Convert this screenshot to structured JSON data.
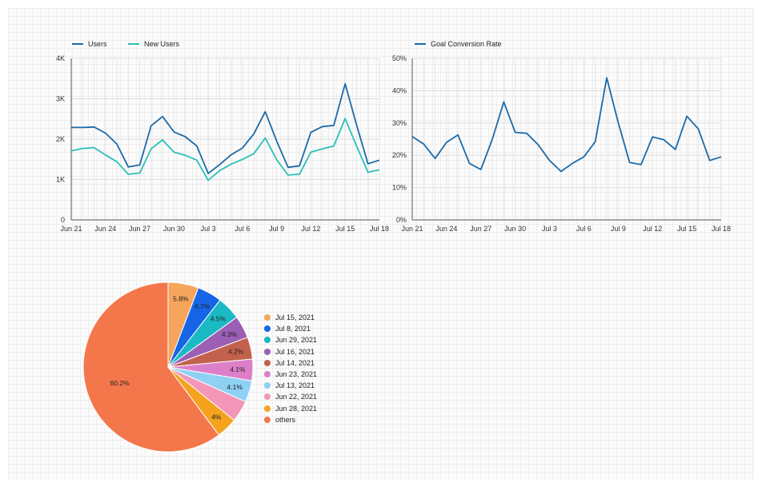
{
  "chart_data": [
    {
      "type": "line",
      "x": [
        "Jun 21",
        "Jun 22",
        "Jun 23",
        "Jun 24",
        "Jun 25",
        "Jun 26",
        "Jun 27",
        "Jun 28",
        "Jun 29",
        "Jun 30",
        "Jul 1",
        "Jul 2",
        "Jul 3",
        "Jul 4",
        "Jul 5",
        "Jul 6",
        "Jul 7",
        "Jul 8",
        "Jul 9",
        "Jul 10",
        "Jul 11",
        "Jul 12",
        "Jul 13",
        "Jul 14",
        "Jul 15",
        "Jul 16",
        "Jul 17",
        "Jul 18"
      ],
      "xticks": [
        "Jun 21",
        "Jun 24",
        "Jun 27",
        "Jun 30",
        "Jul 3",
        "Jul 6",
        "Jul 9",
        "Jul 12",
        "Jul 15",
        "Jul 18"
      ],
      "yticks": [
        "0",
        "1K",
        "2K",
        "3K",
        "4K"
      ],
      "ylim": [
        0,
        4000
      ],
      "series": [
        {
          "name": "Users",
          "color": "#1c6aa8",
          "values": [
            2290,
            2290,
            2300,
            2150,
            1880,
            1310,
            1360,
            2330,
            2560,
            2180,
            2060,
            1830,
            1150,
            1370,
            1610,
            1780,
            2130,
            2680,
            1950,
            1300,
            1340,
            2170,
            2310,
            2340,
            3370,
            2350,
            1390,
            1480
          ]
        },
        {
          "name": "New Users",
          "color": "#2dbfb7",
          "values": [
            1710,
            1770,
            1790,
            1610,
            1440,
            1130,
            1160,
            1760,
            1980,
            1680,
            1600,
            1480,
            980,
            1220,
            1380,
            1500,
            1640,
            2030,
            1490,
            1110,
            1130,
            1680,
            1760,
            1830,
            2510,
            1830,
            1180,
            1240
          ]
        }
      ],
      "grid": true,
      "legend": "top-left"
    },
    {
      "type": "line",
      "x": [
        "Jun 21",
        "Jun 22",
        "Jun 23",
        "Jun 24",
        "Jun 25",
        "Jun 26",
        "Jun 27",
        "Jun 28",
        "Jun 29",
        "Jun 30",
        "Jul 1",
        "Jul 2",
        "Jul 3",
        "Jul 4",
        "Jul 5",
        "Jul 6",
        "Jul 7",
        "Jul 8",
        "Jul 9",
        "Jul 10",
        "Jul 11",
        "Jul 12",
        "Jul 13",
        "Jul 14",
        "Jul 15",
        "Jul 16",
        "Jul 17",
        "Jul 18"
      ],
      "xticks": [
        "Jun 21",
        "Jun 24",
        "Jun 27",
        "Jun 30",
        "Jul 3",
        "Jul 6",
        "Jul 9",
        "Jul 12",
        "Jul 15",
        "Jul 18"
      ],
      "yticks": [
        "0%",
        "10%",
        "20%",
        "30%",
        "40%",
        "50%"
      ],
      "ylim": [
        0,
        50
      ],
      "series": [
        {
          "name": "Goal Conversion Rate",
          "color": "#1c6aa8",
          "values": [
            25.8,
            23.5,
            19.0,
            24.0,
            26.3,
            17.5,
            15.6,
            25.0,
            36.5,
            27.1,
            26.8,
            23.3,
            18.4,
            15.0,
            17.5,
            19.5,
            24.2,
            44.0,
            30.2,
            17.8,
            17.1,
            25.7,
            24.8,
            21.8,
            32.1,
            28.2,
            18.4,
            19.5
          ]
        }
      ],
      "grid": true,
      "legend": "top-left"
    },
    {
      "type": "pie",
      "slices": [
        {
          "name": "Jul 15, 2021",
          "value": 5.8,
          "label": "5.8%",
          "color": "#f5a55c"
        },
        {
          "name": "Jul 8, 2021",
          "value": 4.7,
          "label": "4.7%",
          "color": "#1565e6"
        },
        {
          "name": "Jun 29, 2021",
          "value": 4.5,
          "label": "4.5%",
          "color": "#1ab9c4"
        },
        {
          "name": "Jul 16, 2021",
          "value": 4.3,
          "label": "4.3%",
          "color": "#9c5fb5"
        },
        {
          "name": "Jul 14, 2021",
          "value": 4.2,
          "label": "4.2%",
          "color": "#c2614c"
        },
        {
          "name": "Jun 23, 2021",
          "value": 4.1,
          "label": "4.1%",
          "color": "#dd7fc8"
        },
        {
          "name": "Jul 13, 2021",
          "value": 4.1,
          "label": "4.1%",
          "color": "#8fd0f5"
        },
        {
          "name": "Jun 22, 2021",
          "value": 4.1,
          "label": "",
          "color": "#f396b8"
        },
        {
          "name": "Jun 28, 2021",
          "value": 4.0,
          "label": "4%",
          "color": "#f5a31f"
        },
        {
          "name": "others",
          "value": 60.2,
          "label": "60.2%",
          "color": "#f4774b"
        }
      ],
      "legend": "right"
    }
  ]
}
